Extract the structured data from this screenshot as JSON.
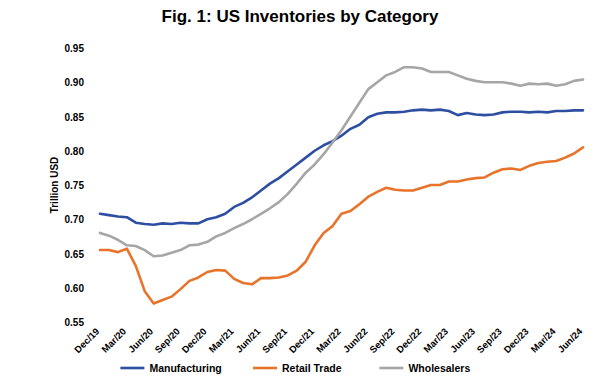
{
  "chart_data": {
    "type": "line",
    "title": "Fig. 1: US Inventories by Category",
    "y_label": "Trillion USD",
    "categories": [
      "Dec/19",
      null,
      null,
      "Mar/20",
      null,
      null,
      "Jun/20",
      null,
      null,
      "Sep/20",
      null,
      null,
      "Dec/20",
      null,
      null,
      "Mar/21",
      null,
      null,
      "Jun/21",
      null,
      null,
      "Sep/21",
      null,
      null,
      "Dec/21",
      null,
      null,
      "Mar/22",
      null,
      null,
      "Jun/22",
      null,
      null,
      "Sep/22",
      null,
      null,
      "Dec/22",
      null,
      null,
      "Mar/23",
      null,
      null,
      "Jun/23",
      null,
      null,
      "Sep/23",
      null,
      null,
      "Dec/23",
      null,
      null,
      "Mar/24",
      null,
      null,
      "Jun/24"
    ],
    "series": [
      {
        "name": "Manufacturing",
        "color": "#2E4FA1",
        "values": [
          0.708,
          0.706,
          0.704,
          0.703,
          0.695,
          0.693,
          0.692,
          0.694,
          0.693,
          0.695,
          0.694,
          0.694,
          0.7,
          0.703,
          0.708,
          0.718,
          0.724,
          0.732,
          0.742,
          0.752,
          0.76,
          0.77,
          0.78,
          0.79,
          0.8,
          0.808,
          0.814,
          0.822,
          0.832,
          0.838,
          0.849,
          0.854,
          0.856,
          0.856,
          0.857,
          0.859,
          0.86,
          0.859,
          0.86,
          0.858,
          0.852,
          0.855,
          0.853,
          0.852,
          0.853,
          0.856,
          0.857,
          0.857,
          0.856,
          0.857,
          0.856,
          0.858,
          0.858,
          0.859,
          0.859
        ]
      },
      {
        "name": "Retail Trade",
        "color": "#E8732A",
        "values": [
          0.655,
          0.655,
          0.652,
          0.657,
          0.632,
          0.595,
          0.577,
          0.582,
          0.587,
          0.598,
          0.61,
          0.615,
          0.623,
          0.626,
          0.625,
          0.613,
          0.607,
          0.605,
          0.614,
          0.614,
          0.615,
          0.618,
          0.625,
          0.638,
          0.662,
          0.68,
          0.69,
          0.708,
          0.712,
          0.722,
          0.733,
          0.74,
          0.746,
          0.743,
          0.742,
          0.742,
          0.746,
          0.75,
          0.75,
          0.755,
          0.755,
          0.758,
          0.76,
          0.761,
          0.768,
          0.773,
          0.774,
          0.772,
          0.778,
          0.782,
          0.784,
          0.785,
          0.79,
          0.796,
          0.805
        ]
      },
      {
        "name": "Wholesalers",
        "color": "#A6A6A6",
        "values": [
          0.68,
          0.676,
          0.67,
          0.662,
          0.661,
          0.655,
          0.646,
          0.647,
          0.651,
          0.655,
          0.662,
          0.663,
          0.667,
          0.675,
          0.68,
          0.687,
          0.693,
          0.7,
          0.708,
          0.716,
          0.725,
          0.737,
          0.752,
          0.768,
          0.78,
          0.795,
          0.812,
          0.83,
          0.85,
          0.87,
          0.89,
          0.9,
          0.91,
          0.915,
          0.922,
          0.922,
          0.92,
          0.915,
          0.915,
          0.915,
          0.91,
          0.905,
          0.902,
          0.9,
          0.9,
          0.9,
          0.898,
          0.895,
          0.898,
          0.897,
          0.898,
          0.895,
          0.897,
          0.902,
          0.904
        ]
      }
    ],
    "ylim": [
      0.55,
      0.95
    ],
    "yticks": [
      0.55,
      {
        "value": 0.6,
        "label": "0.60"
      },
      0.65,
      {
        "value": 0.7,
        "label": "0.70"
      },
      0.75,
      {
        "value": 0.8,
        "label": "0.80"
      },
      0.85,
      {
        "value": 0.9,
        "label": "0.90"
      },
      0.95
    ],
    "grid": false,
    "legend": "bottom"
  }
}
